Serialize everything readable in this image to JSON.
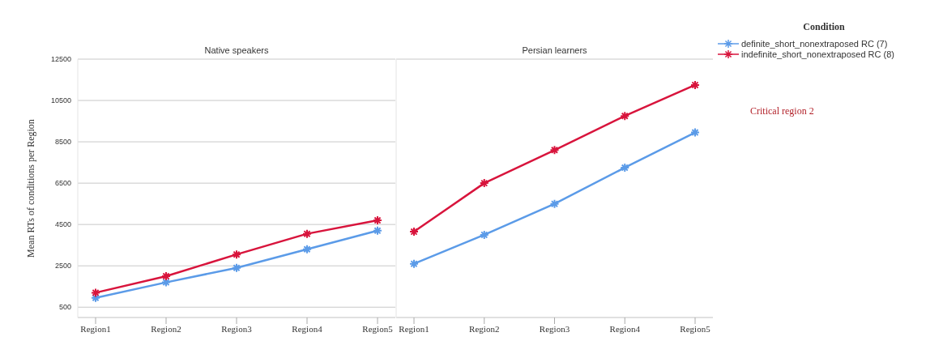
{
  "chart_data": [
    {
      "type": "line",
      "title": "Native speakers",
      "ylabel": "Mean RTs of conditions per Region",
      "categories": [
        "Region1",
        "Region2",
        "Region3",
        "Region4",
        "Region5"
      ],
      "series": [
        {
          "color": "#5b9be8",
          "values": [
            950,
            1700,
            2400,
            3300,
            4200
          ]
        },
        {
          "color": "#d8143c",
          "values": [
            1200,
            2000,
            3050,
            4050,
            4700
          ]
        }
      ],
      "ylim": [
        0,
        12500
      ],
      "yticks": [
        500,
        2500,
        4500,
        6500,
        8500,
        10500,
        12500
      ],
      "grid": "y",
      "marker": "cross",
      "legend": false
    },
    {
      "type": "line",
      "title": "Persian learners",
      "legend_title": "Condition",
      "annotations": [
        "Critical region 2"
      ],
      "categories": [
        "Region1",
        "Region2",
        "Region3",
        "Region4",
        "Region5"
      ],
      "series": [
        {
          "name": "definite_short_nonextraposed RC (7)",
          "color": "#5b9be8",
          "values": [
            2600,
            4000,
            5500,
            7250,
            8950
          ]
        },
        {
          "name": "indefinite_short_nonextraposed RC (8)",
          "color": "#d8143c",
          "values": [
            4150,
            6500,
            8100,
            9750,
            11250
          ]
        }
      ],
      "ylim": [
        0,
        12500
      ],
      "yticks": [
        500,
        2500,
        4500,
        6500,
        8500,
        10500,
        12500
      ],
      "grid": "y",
      "marker": "cross",
      "legend": "top right",
      "tick_labels": "x"
    }
  ]
}
